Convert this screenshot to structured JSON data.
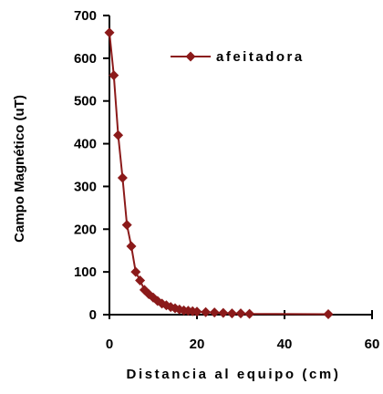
{
  "chart_data": {
    "type": "line",
    "title": "",
    "xlabel": "Distancia al equipo (cm)",
    "ylabel": "Campo Magnético (uT)",
    "xlim": [
      0,
      60
    ],
    "ylim": [
      0,
      700
    ],
    "xticks": [
      0,
      20,
      40,
      60
    ],
    "yticks": [
      0,
      100,
      200,
      300,
      400,
      500,
      600,
      700
    ],
    "grid": false,
    "legend_position": "top-right",
    "series": [
      {
        "name": "afeitadora",
        "color": "#8B1A1A",
        "marker": "diamond",
        "x": [
          0,
          1,
          2,
          3,
          4,
          5,
          6,
          7,
          8,
          9,
          10,
          11,
          12,
          13,
          14,
          15,
          16,
          17,
          18,
          19,
          20,
          22,
          24,
          26,
          28,
          30,
          32,
          50
        ],
        "y": [
          660,
          560,
          420,
          320,
          210,
          160,
          100,
          80,
          58,
          48,
          40,
          32,
          26,
          22,
          18,
          15,
          12,
          10,
          9,
          8,
          7,
          6,
          5,
          4,
          3,
          3,
          2,
          1
        ]
      }
    ]
  }
}
